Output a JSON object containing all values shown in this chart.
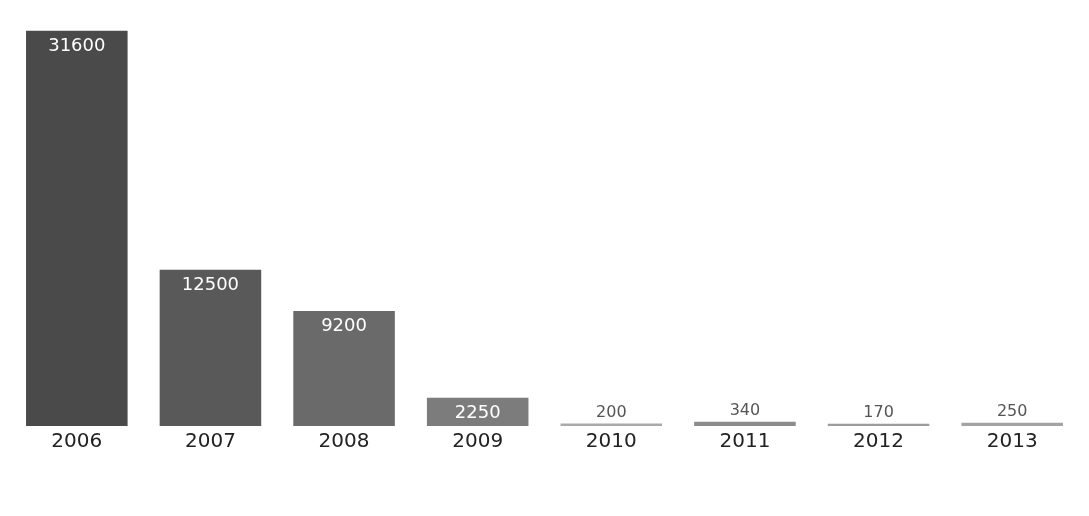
{
  "chart_data": {
    "type": "bar",
    "categories": [
      "2006",
      "2007",
      "2008",
      "2009",
      "2010",
      "2011",
      "2012",
      "2013"
    ],
    "values": [
      31600,
      12500,
      9200,
      2250,
      200,
      340,
      170,
      250
    ],
    "colors": [
      "#4a4a4a",
      "#595959",
      "#6a6a6a",
      "#7c7c7c",
      "#a9a9a9",
      "#8c8c8c",
      "#9c9c9c",
      "#a3a3a3"
    ],
    "data_labels": true,
    "tick_labels": "x"
  }
}
